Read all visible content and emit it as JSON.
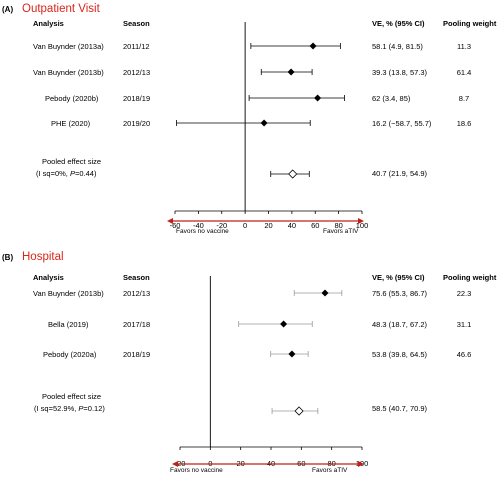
{
  "colors": {
    "panel_title": "#d9261c",
    "arrow": "#c0201a",
    "panel_a_ci": "#000000",
    "panel_b_ci": "#9a9a9a",
    "point_fill": "#000000",
    "pooled_fill": "#ffffff"
  },
  "chart_data": [
    {
      "type": "forest",
      "panel_letter": "(A)",
      "title": "Outpatient Visit",
      "headers": {
        "analysis": "Analysis",
        "season": "Season",
        "ve": "VE, % (95% CI)",
        "weight": "Pooling weight"
      },
      "xlim": [
        -60,
        100
      ],
      "ticks": [
        -60,
        -40,
        -20,
        0,
        20,
        40,
        60,
        80,
        100
      ],
      "tick_labels": [
        "-60",
        "-40",
        "-20",
        "0",
        "20",
        "40",
        "60",
        "80",
        "100"
      ],
      "direction_left": "Favors no vaccine",
      "direction_right": "Favors aTIV",
      "studies": [
        {
          "analysis": "Van Buynder (2013a)",
          "season": "2011/12",
          "ve": 58.1,
          "lo": 4.9,
          "hi": 81.5,
          "ve_text": "58.1 (4.9, 81.5)",
          "weight": "11.3"
        },
        {
          "analysis": "Van Buynder (2013b)",
          "season": "2012/13",
          "ve": 39.3,
          "lo": 13.8,
          "hi": 57.3,
          "ve_text": "39.3 (13.8, 57.3)",
          "weight": "61.4"
        },
        {
          "analysis": "Pebody (2020b)",
          "season": "2018/19",
          "ve": 62,
          "lo": 3.4,
          "hi": 85,
          "ve_text": "62 (3.4, 85)",
          "weight": "8.7"
        },
        {
          "analysis": "PHE (2020)",
          "season": "2019/20",
          "ve": 16.2,
          "lo": -58.7,
          "hi": 55.7,
          "ve_text": "16.2 (−58.7, 55.7)",
          "weight": "18.6"
        }
      ],
      "pooled": {
        "label_line1": "Pooled effect size",
        "label_line2_prefix": "(I sq=0%, ",
        "label_line2_p": "P",
        "label_line2_suffix": "=0.44)",
        "ve": 40.7,
        "lo": 21.9,
        "hi": 54.9,
        "ve_text": "40.7 (21.9, 54.9)"
      }
    },
    {
      "type": "forest",
      "panel_letter": "(B)",
      "title": "Hospital",
      "headers": {
        "analysis": "Analysis",
        "season": "Season",
        "ve": "VE, % (95% CI)",
        "weight": "Pooling weight"
      },
      "xlim": [
        -20,
        100
      ],
      "ticks": [
        -20,
        0,
        20,
        40,
        60,
        80,
        100
      ],
      "tick_labels": [
        "-20",
        "0",
        "20",
        "40",
        "60",
        "80",
        "100"
      ],
      "direction_left": "Favors no vaccine",
      "direction_right": "Favors aTIV",
      "studies": [
        {
          "analysis": "Van Buynder (2013b)",
          "season": "2012/13",
          "ve": 75.6,
          "lo": 55.3,
          "hi": 86.7,
          "ve_text": "75.6 (55.3, 86.7)",
          "weight": "22.3"
        },
        {
          "analysis": "Bella (2019)",
          "season": "2017/18",
          "ve": 48.3,
          "lo": 18.7,
          "hi": 67.2,
          "ve_text": "48.3 (18.7, 67.2)",
          "weight": "31.1"
        },
        {
          "analysis": "Pebody (2020a)",
          "season": "2018/19",
          "ve": 53.8,
          "lo": 39.8,
          "hi": 64.5,
          "ve_text": "53.8 (39.8, 64.5)",
          "weight": "46.6"
        }
      ],
      "pooled": {
        "label_line1": "Pooled effect size",
        "label_line2_prefix": "(I sq=52.9%, ",
        "label_line2_p": "P",
        "label_line2_suffix": "=0.12)",
        "ve": 58.5,
        "lo": 40.7,
        "hi": 70.9,
        "ve_text": "58.5 (40.7, 70.9)"
      }
    }
  ]
}
